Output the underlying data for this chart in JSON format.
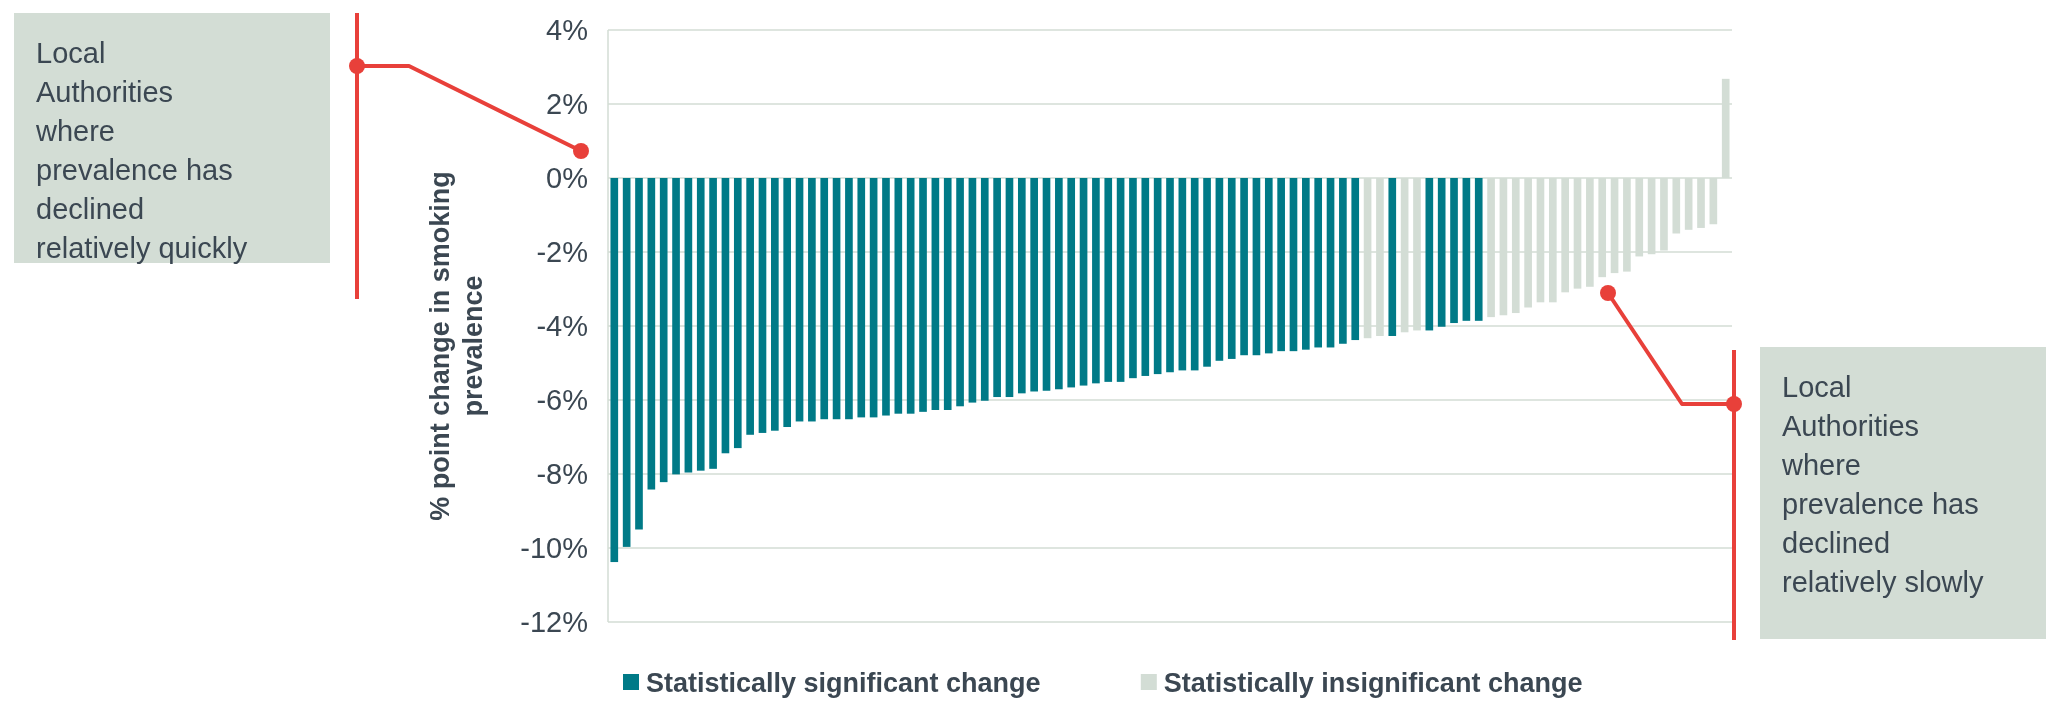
{
  "chart_data": {
    "type": "bar",
    "ylabel": "% point change in smoking prevalence",
    "categories": [
      null,
      null,
      null,
      null,
      null,
      null,
      null,
      null,
      null,
      null,
      null,
      null,
      null,
      null,
      null,
      null,
      null,
      null,
      null,
      null,
      null,
      null,
      null,
      null,
      null,
      null,
      null,
      null,
      null,
      null,
      null,
      null,
      null,
      null,
      null,
      null,
      null,
      null,
      null,
      null,
      null,
      null,
      null,
      null,
      null,
      null,
      null,
      null,
      null,
      null,
      null,
      null,
      null,
      null,
      null,
      null,
      null,
      null,
      null,
      null,
      null,
      null,
      null,
      null,
      null,
      null,
      null,
      null,
      null,
      null,
      null,
      null,
      null,
      null,
      null,
      null,
      null,
      null,
      null,
      null,
      null,
      null,
      null,
      null,
      null,
      null,
      null,
      null,
      null,
      null,
      null
    ],
    "series": [
      {
        "name": "Statistically significant change",
        "color": "#007a87",
        "values": [
          -10.38,
          -9.97,
          -9.5,
          -8.42,
          -8.22,
          -8.01,
          -7.96,
          -7.91,
          -7.86,
          -7.44,
          -7.3,
          -6.94,
          -6.89,
          -6.83,
          -6.73,
          -6.58,
          -6.58,
          -6.52,
          -6.52,
          -6.52,
          -6.47,
          -6.47,
          -6.42,
          -6.37,
          -6.37,
          -6.32,
          -6.27,
          -6.27,
          -6.17,
          -6.07,
          -6.02,
          -5.92,
          -5.92,
          -5.82,
          -5.77,
          -5.75,
          -5.71,
          -5.66,
          -5.61,
          -5.55,
          -5.51,
          -5.51,
          -5.41,
          -5.35,
          -5.3,
          -5.25,
          -5.2,
          -5.2,
          -5.1,
          -4.94,
          -4.89,
          -4.79,
          -4.79,
          -4.74,
          -4.68,
          -4.68,
          -4.64,
          -4.58,
          -4.58,
          -4.48,
          -4.38,
          null,
          null,
          -4.27,
          null,
          null,
          -4.12,
          -4.02,
          -3.92,
          -3.86,
          -3.86,
          null,
          null,
          null,
          null,
          null,
          null,
          null,
          null,
          null,
          null,
          null,
          null,
          null,
          null,
          null,
          null,
          null,
          null,
          null,
          null
        ]
      },
      {
        "name": "Statistically insignificant change",
        "color": "#d3ddd5",
        "values": [
          null,
          null,
          null,
          null,
          null,
          null,
          null,
          null,
          null,
          null,
          null,
          null,
          null,
          null,
          null,
          null,
          null,
          null,
          null,
          null,
          null,
          null,
          null,
          null,
          null,
          null,
          null,
          null,
          null,
          null,
          null,
          null,
          null,
          null,
          null,
          null,
          null,
          null,
          null,
          null,
          null,
          null,
          null,
          null,
          null,
          null,
          null,
          null,
          null,
          null,
          null,
          null,
          null,
          null,
          null,
          null,
          null,
          null,
          null,
          null,
          null,
          -4.33,
          -4.27,
          null,
          -4.17,
          -4.12,
          null,
          null,
          null,
          null,
          null,
          -3.76,
          -3.71,
          -3.65,
          -3.5,
          -3.36,
          -3.36,
          -3.09,
          -2.99,
          -2.94,
          -2.68,
          -2.57,
          -2.53,
          -2.12,
          -2.06,
          -1.96,
          -1.5,
          -1.4,
          -1.35,
          -1.25,
          2.68
        ]
      }
    ],
    "ylim": [
      -12,
      4
    ],
    "yticks": [
      {
        "value": -12,
        "label": "-12%"
      },
      {
        "value": -10,
        "label": "-10%"
      },
      {
        "value": -8,
        "label": "-8%"
      },
      {
        "value": -6,
        "label": "-6%"
      },
      {
        "value": -4,
        "label": "-4%"
      },
      {
        "value": -2,
        "label": "-2%"
      },
      {
        "value": 0,
        "label": "0%"
      },
      {
        "value": 2,
        "label": "2%"
      },
      {
        "value": 4,
        "label": "4%"
      }
    ],
    "grid": "y",
    "legend": "bottom",
    "annotations": [
      "Local\nAuthorities\nwhere\nprevalence has\ndeclined\nrelatively quickly",
      "Local\nAuthorities\nwhere\nprevalence has\ndeclined\nrelatively slowly"
    ]
  }
}
